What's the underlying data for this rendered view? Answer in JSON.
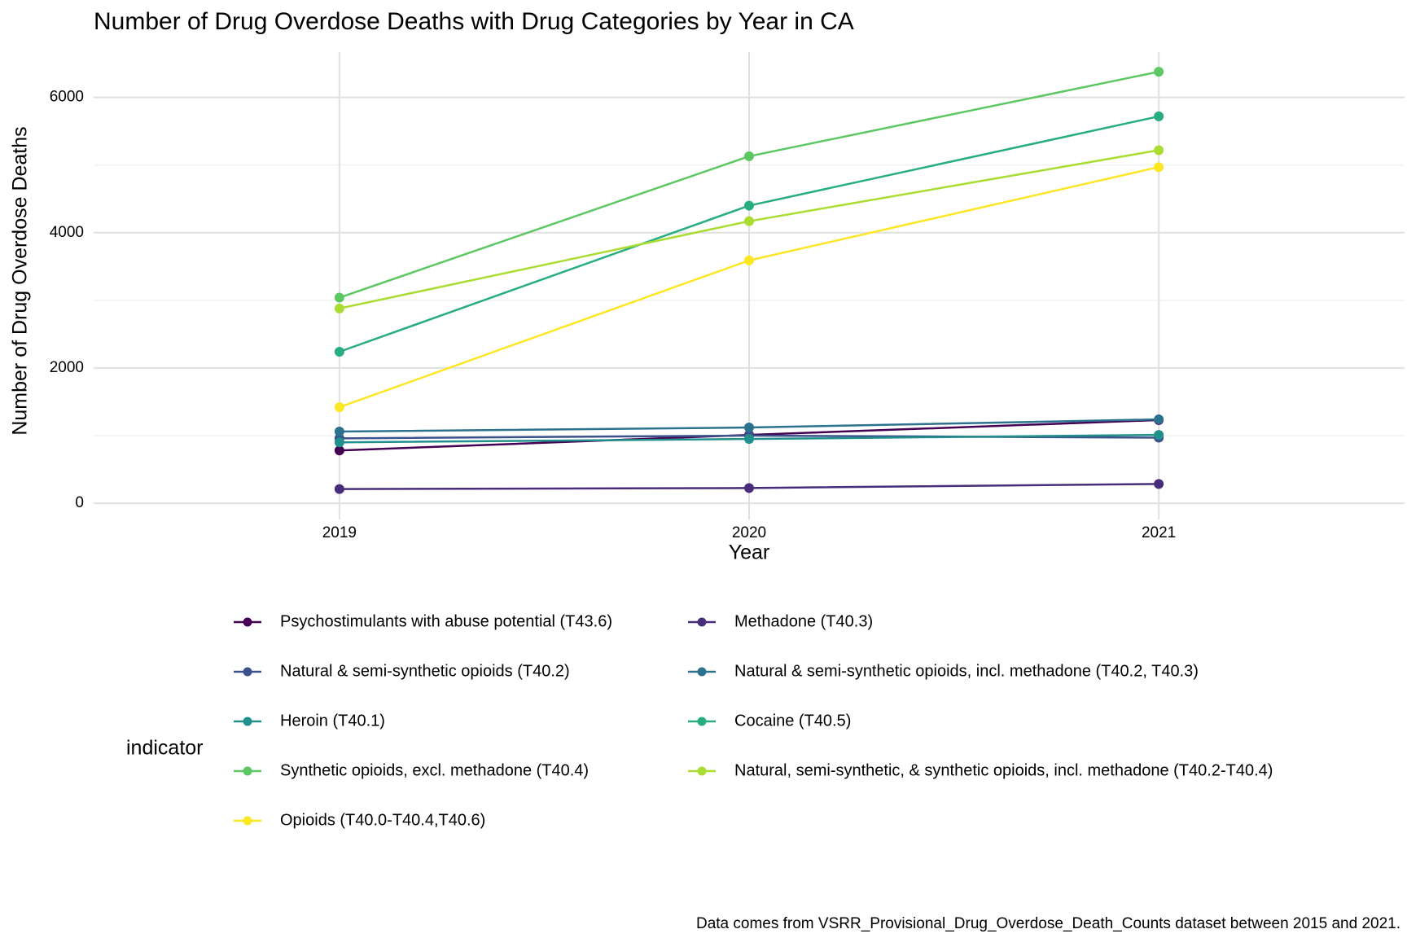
{
  "chart_data": {
    "type": "line",
    "title": "Number of Drug Overdose Deaths with Drug Categories by Year in CA",
    "x_label": "Year",
    "y_label": "Number of Drug Overdose Deaths",
    "legend_title": "indicator",
    "caption": "Data comes from VSRR_Provisional_Drug_Overdose_Death_Counts dataset between 2015 and 2021.",
    "x": [
      2019,
      2020,
      2021
    ],
    "xlim": [
      2018.4,
      2021.6
    ],
    "xticks": [
      2019,
      2020,
      2021
    ],
    "ylim": [
      -240,
      6670
    ],
    "yticks": [
      0,
      2000,
      4000,
      6000
    ],
    "grid": true,
    "legend": "bottom",
    "series": [
      {
        "name": "Psychostimulants with abuse potential (T43.6)",
        "color": "#440154",
        "values": [
          780,
          1010,
          1230
        ]
      },
      {
        "name": "Methadone (T40.3)",
        "color": "#472D7B",
        "values": [
          210,
          225,
          285
        ]
      },
      {
        "name": "Natural & semi-synthetic opioids (T40.2)",
        "color": "#3B528B",
        "values": [
          960,
          1000,
          970
        ]
      },
      {
        "name": "Natural & semi-synthetic opioids, incl. methadone (T40.2, T40.3)",
        "color": "#2C728E",
        "values": [
          1060,
          1120,
          1240
        ]
      },
      {
        "name": "Heroin (T40.1)",
        "color": "#21908C",
        "values": [
          900,
          950,
          1010
        ]
      },
      {
        "name": "Cocaine (T40.5)",
        "color": "#27AD81",
        "values": [
          2240,
          4400,
          5720
        ]
      },
      {
        "name": "Synthetic opioids, excl. methadone (T40.4)",
        "color": "#5DC863",
        "values": [
          3040,
          5130,
          6380
        ]
      },
      {
        "name": "Natural, semi-synthetic, & synthetic opioids, incl. methadone (T40.2-T40.4)",
        "color": "#AADC32",
        "values": [
          2880,
          4170,
          5220
        ]
      },
      {
        "name": "Opioids (T40.0-T40.4,T40.6)",
        "color": "#FDE725",
        "values": [
          1420,
          3590,
          4970
        ]
      }
    ]
  }
}
